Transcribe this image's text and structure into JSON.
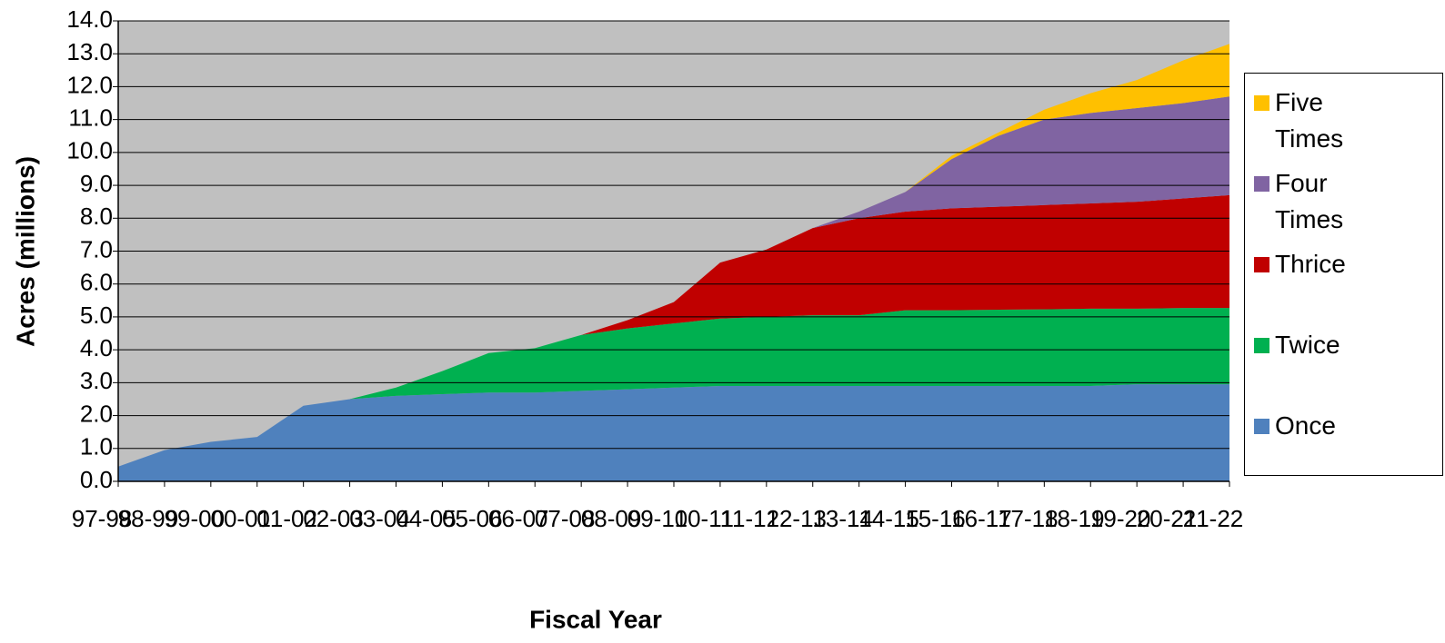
{
  "chart_data": {
    "type": "stacked-area",
    "x_label": "Fiscal Year",
    "y_label": "Acres (millions)",
    "categories": [
      "97-98",
      "98-99",
      "99-00",
      "00-01",
      "01-02",
      "02-03",
      "03-04",
      "04-05",
      "05-06",
      "06-07",
      "07-08",
      "08-09",
      "09-10",
      "10-11",
      "11-12",
      "12-13",
      "13-14",
      "14-15",
      "15-16",
      "16-17",
      "17-18",
      "18-19",
      "19-20",
      "20-21",
      "21-22"
    ],
    "series": [
      {
        "name": "Once",
        "color": "#4f81bd",
        "values": [
          0.45,
          0.95,
          1.2,
          1.35,
          2.3,
          2.5,
          2.6,
          2.65,
          2.7,
          2.7,
          2.75,
          2.8,
          2.85,
          2.9,
          2.9,
          2.9,
          2.9,
          2.9,
          2.9,
          2.9,
          2.9,
          2.9,
          2.95,
          2.95,
          2.95
        ]
      },
      {
        "name": "Twice",
        "color": "#00b050",
        "values": [
          0,
          0,
          0,
          0,
          0,
          0,
          0.25,
          0.7,
          1.2,
          1.35,
          1.7,
          1.85,
          1.95,
          2.05,
          2.1,
          2.15,
          2.15,
          2.3,
          2.3,
          2.32,
          2.33,
          2.35,
          2.3,
          2.32,
          2.32
        ]
      },
      {
        "name": "Thrice",
        "color": "#c00000",
        "values": [
          0,
          0,
          0,
          0,
          0,
          0,
          0,
          0,
          0,
          0,
          0,
          0.25,
          0.65,
          1.7,
          2.05,
          2.65,
          2.95,
          3.0,
          3.1,
          3.13,
          3.17,
          3.2,
          3.25,
          3.33,
          3.43
        ]
      },
      {
        "name": "Four Times",
        "color": "#8064a2",
        "values": [
          0,
          0,
          0,
          0,
          0,
          0,
          0,
          0,
          0,
          0,
          0,
          0,
          0,
          0,
          0,
          0,
          0.2,
          0.6,
          1.5,
          2.15,
          2.6,
          2.75,
          2.85,
          2.9,
          3.0
        ]
      },
      {
        "name": "Five Times",
        "color": "#ffc000",
        "values": [
          0,
          0,
          0,
          0,
          0,
          0,
          0,
          0,
          0,
          0,
          0,
          0,
          0,
          0,
          0,
          0,
          0,
          0,
          0.1,
          0.1,
          0.3,
          0.6,
          0.85,
          1.3,
          1.6
        ]
      }
    ],
    "ylim": [
      0,
      14
    ],
    "yticks": [
      {
        "value": 0,
        "label": "0.0"
      },
      {
        "value": 1,
        "label": "1.0"
      },
      {
        "value": 2,
        "label": "2.0"
      },
      {
        "value": 3,
        "label": "3.0"
      },
      {
        "value": 4,
        "label": "4.0"
      },
      {
        "value": 5,
        "label": "5.0"
      },
      {
        "value": 6,
        "label": "6.0"
      },
      {
        "value": 7,
        "label": "7.0"
      },
      {
        "value": 8,
        "label": "8.0"
      },
      {
        "value": 9,
        "label": "9.0"
      },
      {
        "value": 10,
        "label": "10.0"
      },
      {
        "value": 11,
        "label": "11.0"
      },
      {
        "value": 12,
        "label": "12.0"
      },
      {
        "value": 13,
        "label": "13.0"
      },
      {
        "value": 14,
        "label": "14.0"
      }
    ],
    "grid": true,
    "plot_background": "#c0c0c0",
    "legend": "right"
  }
}
